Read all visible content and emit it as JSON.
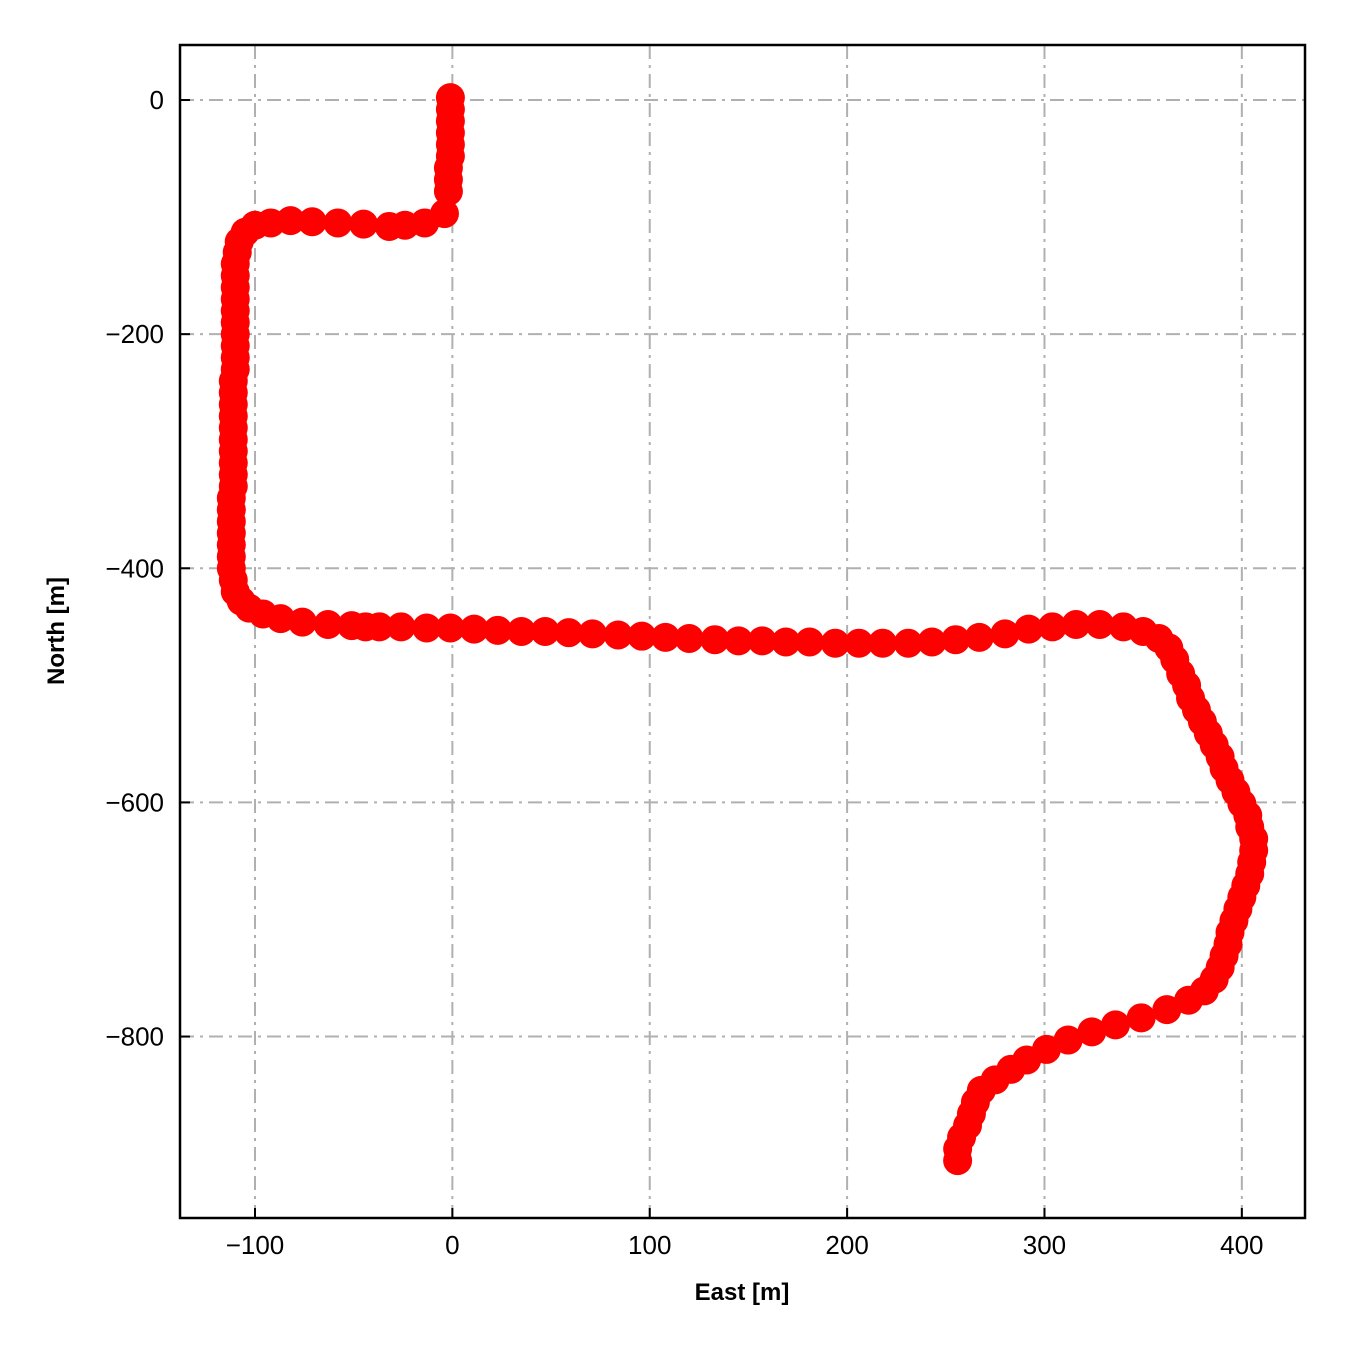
{
  "chart_data": {
    "type": "scatter",
    "title": "",
    "xlabel": "East [m]",
    "ylabel": "North [m]",
    "xlim": [
      -138,
      432
    ],
    "ylim": [
      -955,
      47
    ],
    "xticks": [
      -100,
      0,
      100,
      200,
      300,
      400
    ],
    "yticks": [
      0,
      -200,
      -400,
      -600,
      -800
    ],
    "xtick_labels": [
      "−100",
      "0",
      "100",
      "200",
      "300",
      "400"
    ],
    "ytick_labels": [
      "0",
      "−200",
      "−400",
      "−600",
      "−800"
    ],
    "grid": true,
    "marker_color": "#ff0000",
    "series": [
      {
        "points": [
          [
            -1,
            2
          ],
          [
            -1,
            -8
          ],
          [
            -1,
            -18
          ],
          [
            -1,
            -28
          ],
          [
            -1,
            -38
          ],
          [
            -1,
            -48
          ],
          [
            -2,
            -58
          ],
          [
            -2,
            -68
          ],
          [
            -2,
            -78
          ],
          [
            -4,
            -97
          ],
          [
            -14,
            -105
          ],
          [
            -24,
            -107
          ],
          [
            -32,
            -108
          ],
          [
            -45,
            -106
          ],
          [
            -58,
            -105
          ],
          [
            -71,
            -104
          ],
          [
            -82,
            -103
          ],
          [
            -92,
            -105
          ],
          [
            -100,
            -107
          ],
          [
            -105,
            -113
          ],
          [
            -108,
            -121
          ],
          [
            -109,
            -130
          ],
          [
            -110,
            -140
          ],
          [
            -110,
            -150
          ],
          [
            -110,
            -160
          ],
          [
            -110,
            -170
          ],
          [
            -110,
            -180
          ],
          [
            -110,
            -190
          ],
          [
            -110,
            -200
          ],
          [
            -110,
            -210
          ],
          [
            -110,
            -220
          ],
          [
            -110,
            -230
          ],
          [
            -111,
            -240
          ],
          [
            -111,
            -250
          ],
          [
            -111,
            -260
          ],
          [
            -111,
            -270
          ],
          [
            -111,
            -280
          ],
          [
            -111,
            -290
          ],
          [
            -111,
            -300
          ],
          [
            -111,
            -310
          ],
          [
            -111,
            -320
          ],
          [
            -111,
            -330
          ],
          [
            -112,
            -340
          ],
          [
            -112,
            -350
          ],
          [
            -112,
            -360
          ],
          [
            -112,
            -370
          ],
          [
            -112,
            -380
          ],
          [
            -112,
            -390
          ],
          [
            -112,
            -400
          ],
          [
            -111,
            -410
          ],
          [
            -110,
            -420
          ],
          [
            -107,
            -428
          ],
          [
            -103,
            -434
          ],
          [
            -96,
            -439
          ],
          [
            -87,
            -443
          ],
          [
            -76,
            -446
          ],
          [
            -63,
            -448
          ],
          [
            -51,
            -449
          ],
          [
            -44,
            -450
          ],
          [
            -37,
            -450
          ],
          [
            -26,
            -450
          ],
          [
            -13,
            -451
          ],
          [
            -1,
            -451
          ],
          [
            11,
            -452
          ],
          [
            23,
            -453
          ],
          [
            35,
            -454
          ],
          [
            47,
            -454
          ],
          [
            59,
            -455
          ],
          [
            71,
            -456
          ],
          [
            84,
            -457
          ],
          [
            96,
            -458
          ],
          [
            108,
            -459
          ],
          [
            120,
            -460
          ],
          [
            133,
            -461
          ],
          [
            145,
            -462
          ],
          [
            157,
            -462
          ],
          [
            169,
            -463
          ],
          [
            181,
            -463
          ],
          [
            194,
            -464
          ],
          [
            206,
            -464
          ],
          [
            218,
            -464
          ],
          [
            231,
            -464
          ],
          [
            243,
            -463
          ],
          [
            255,
            -461
          ],
          [
            267,
            -459
          ],
          [
            280,
            -456
          ],
          [
            292,
            -452
          ],
          [
            304,
            -450
          ],
          [
            316,
            -448
          ],
          [
            328,
            -448
          ],
          [
            340,
            -450
          ],
          [
            350,
            -454
          ],
          [
            358,
            -460
          ],
          [
            363,
            -468
          ],
          [
            366,
            -478
          ],
          [
            369,
            -490
          ],
          [
            372,
            -500
          ],
          [
            374,
            -511
          ],
          [
            377,
            -521
          ],
          [
            380,
            -531
          ],
          [
            383,
            -541
          ],
          [
            386,
            -551
          ],
          [
            389,
            -561
          ],
          [
            391,
            -571
          ],
          [
            394,
            -581
          ],
          [
            397,
            -591
          ],
          [
            400,
            -601
          ],
          [
            403,
            -611
          ],
          [
            404,
            -621
          ],
          [
            406,
            -631
          ],
          [
            406,
            -641
          ],
          [
            405,
            -651
          ],
          [
            404,
            -661
          ],
          [
            402,
            -671
          ],
          [
            400,
            -681
          ],
          [
            398,
            -691
          ],
          [
            396,
            -701
          ],
          [
            394,
            -711
          ],
          [
            393,
            -721
          ],
          [
            391,
            -731
          ],
          [
            389,
            -741
          ],
          [
            386,
            -751
          ],
          [
            381,
            -761
          ],
          [
            373,
            -769
          ],
          [
            362,
            -777
          ],
          [
            349,
            -784
          ],
          [
            336,
            -790
          ],
          [
            324,
            -796
          ],
          [
            312,
            -803
          ],
          [
            301,
            -811
          ],
          [
            291,
            -820
          ],
          [
            283,
            -828
          ],
          [
            275,
            -837
          ],
          [
            268,
            -846
          ],
          [
            265,
            -856
          ],
          [
            263,
            -866
          ],
          [
            261,
            -876
          ],
          [
            258,
            -886
          ],
          [
            256,
            -896
          ],
          [
            256,
            -906
          ]
        ]
      }
    ]
  }
}
